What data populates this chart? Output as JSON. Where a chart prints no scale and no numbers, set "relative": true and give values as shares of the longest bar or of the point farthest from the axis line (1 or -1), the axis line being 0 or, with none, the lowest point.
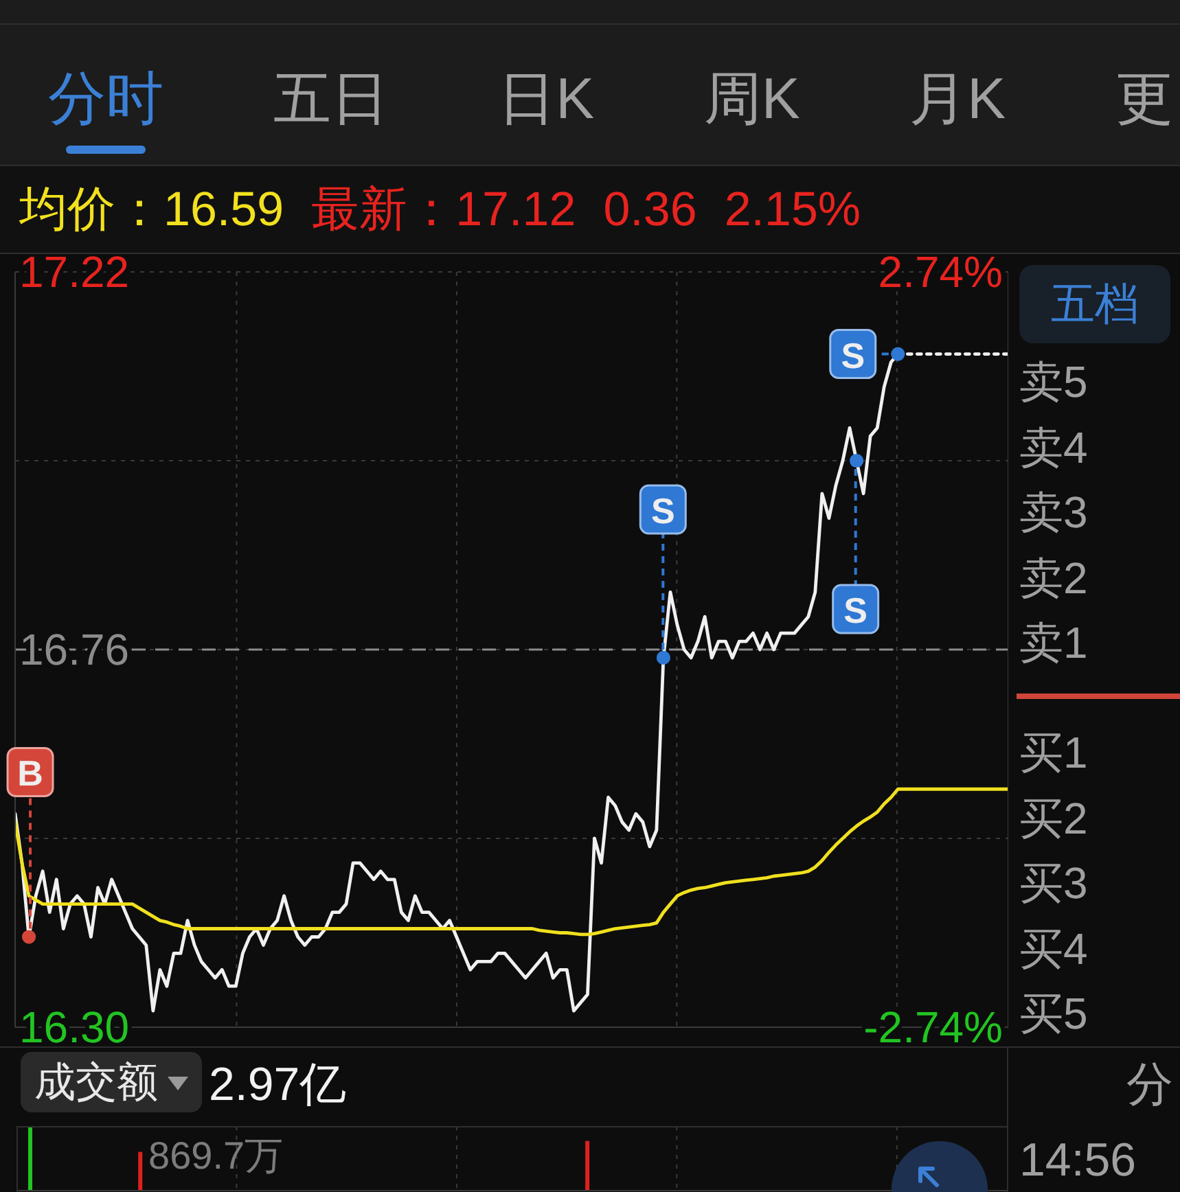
{
  "chart_data": [
    {
      "type": "other",
      "annotations": [
        "分时",
        "五日",
        "日K",
        "周K",
        "月K",
        "更"
      ]
    },
    {
      "type": "other",
      "annotations": [
        "均价：16.59",
        "最新：17.12",
        "0.36",
        "2.15%"
      ]
    },
    {
      "type": "line",
      "categories": [
        null,
        null,
        null,
        null,
        null,
        null,
        null,
        null,
        null,
        null,
        null,
        null,
        null,
        null,
        null,
        null,
        null,
        null,
        null,
        null,
        null,
        null,
        null,
        null,
        null,
        null,
        null,
        null,
        null,
        null,
        null,
        null,
        null,
        null,
        null,
        null,
        null,
        null,
        null,
        null,
        null,
        null,
        null,
        null,
        null,
        null,
        null,
        null,
        null,
        null,
        null,
        null,
        null,
        null,
        null,
        null,
        null,
        null,
        null,
        null,
        null,
        null,
        null,
        null,
        null,
        null,
        null,
        null,
        null,
        null,
        null,
        null,
        null,
        null,
        null,
        null,
        null,
        null,
        null,
        null,
        null,
        null,
        null,
        null,
        null,
        null,
        null,
        null,
        null,
        null,
        null,
        null,
        null,
        null,
        null,
        null,
        null,
        null,
        null,
        null,
        null,
        null,
        null,
        null,
        null,
        null,
        null,
        null,
        null,
        null,
        null,
        null,
        null,
        null,
        null,
        null,
        null,
        null,
        null,
        null,
        null,
        null,
        null,
        null,
        null,
        null,
        null,
        null,
        null,
        null,
        null,
        null,
        null,
        null,
        null,
        null,
        null,
        null,
        null,
        null,
        null,
        null,
        null,
        null,
        null
      ],
      "series": [
        {
          "color": "#f0f0f0",
          "values": [
            16.56,
            16.5,
            16.41,
            16.46,
            16.49,
            16.44,
            16.48,
            16.42,
            16.45,
            16.46,
            16.45,
            16.41,
            16.47,
            16.45,
            16.48,
            16.46,
            16.44,
            16.42,
            16.41,
            16.4,
            16.32,
            16.37,
            16.35,
            16.39,
            16.39,
            16.43,
            16.4,
            16.38,
            16.37,
            16.36,
            16.37,
            16.35,
            16.35,
            16.39,
            16.41,
            16.42,
            16.4,
            16.42,
            16.43,
            16.46,
            16.43,
            16.41,
            16.4,
            16.41,
            16.41,
            16.42,
            16.44,
            16.44,
            16.45,
            16.5,
            16.5,
            16.49,
            16.48,
            16.49,
            16.48,
            16.48,
            16.44,
            16.43,
            16.46,
            16.44,
            16.44,
            16.43,
            16.42,
            16.43,
            16.41,
            16.39,
            16.37,
            16.38,
            16.38,
            16.38,
            16.39,
            16.39,
            16.38,
            16.37,
            16.36,
            16.37,
            16.38,
            16.39,
            16.36,
            16.37,
            16.37,
            16.32,
            16.33,
            16.34,
            16.53,
            16.5,
            16.58,
            16.57,
            16.55,
            16.54,
            16.56,
            16.55,
            16.52,
            16.54,
            16.75,
            16.83,
            16.79,
            16.76,
            16.75,
            16.77,
            16.8,
            16.75,
            16.77,
            16.77,
            16.75,
            16.77,
            16.77,
            16.78,
            16.76,
            16.78,
            16.76,
            16.78,
            16.78,
            16.78,
            16.79,
            16.8,
            16.83,
            16.95,
            16.92,
            16.96,
            16.99,
            17.03,
            16.99,
            16.95,
            17.02,
            17.03,
            17.08,
            17.11,
            17.12,
            null,
            null,
            null,
            null,
            null,
            null,
            null,
            null,
            null,
            null,
            null,
            null,
            null,
            null,
            null,
            null
          ]
        },
        {
          "color": "#f0e01e",
          "values": [
            16.55,
            16.5,
            16.46,
            16.455,
            16.45,
            16.45,
            16.45,
            16.45,
            16.45,
            16.45,
            16.45,
            16.45,
            16.45,
            16.45,
            16.45,
            16.45,
            16.45,
            16.45,
            16.445,
            16.44,
            16.435,
            16.43,
            16.428,
            16.425,
            16.423,
            16.42,
            16.42,
            16.42,
            16.42,
            16.42,
            16.42,
            16.42,
            16.42,
            16.42,
            16.42,
            16.42,
            16.42,
            16.42,
            16.42,
            16.42,
            16.42,
            16.42,
            16.42,
            16.42,
            16.42,
            16.42,
            16.42,
            16.42,
            16.42,
            16.42,
            16.42,
            16.42,
            16.42,
            16.42,
            16.42,
            16.42,
            16.42,
            16.42,
            16.42,
            16.42,
            16.42,
            16.42,
            16.42,
            16.42,
            16.42,
            16.42,
            16.42,
            16.42,
            16.42,
            16.42,
            16.42,
            16.42,
            16.42,
            16.42,
            16.42,
            16.42,
            16.418,
            16.417,
            16.416,
            16.415,
            16.415,
            16.414,
            16.413,
            16.413,
            16.414,
            16.416,
            16.418,
            16.42,
            16.421,
            16.422,
            16.423,
            16.424,
            16.425,
            16.427,
            16.44,
            16.45,
            16.46,
            16.464,
            16.467,
            16.469,
            16.47,
            16.472,
            16.474,
            16.476,
            16.477,
            16.478,
            16.479,
            16.48,
            16.481,
            16.482,
            16.484,
            16.485,
            16.486,
            16.487,
            16.488,
            16.49,
            16.495,
            16.503,
            16.513,
            16.522,
            16.53,
            16.538,
            16.545,
            16.551,
            16.556,
            16.562,
            16.572,
            16.58,
            16.59,
            16.59,
            16.59,
            16.59,
            16.59,
            16.59,
            16.59,
            16.59,
            16.59,
            16.59,
            16.59,
            16.59,
            16.59,
            16.59,
            16.59,
            16.59,
            16.59
          ]
        },
        {
          "color": "#f0f0f0",
          "line_style": "dotted",
          "values": [
            null,
            null,
            null,
            null,
            null,
            null,
            null,
            null,
            null,
            null,
            null,
            null,
            null,
            null,
            null,
            null,
            null,
            null,
            null,
            null,
            null,
            null,
            null,
            null,
            null,
            null,
            null,
            null,
            null,
            null,
            null,
            null,
            null,
            null,
            null,
            null,
            null,
            null,
            null,
            null,
            null,
            null,
            null,
            null,
            null,
            null,
            null,
            null,
            null,
            null,
            null,
            null,
            null,
            null,
            null,
            null,
            null,
            null,
            null,
            null,
            null,
            null,
            null,
            null,
            null,
            null,
            null,
            null,
            null,
            null,
            null,
            null,
            null,
            null,
            null,
            null,
            null,
            null,
            null,
            null,
            null,
            null,
            null,
            null,
            null,
            null,
            null,
            null,
            null,
            null,
            null,
            null,
            null,
            null,
            null,
            null,
            null,
            null,
            null,
            null,
            null,
            null,
            null,
            null,
            null,
            null,
            null,
            null,
            null,
            null,
            null,
            null,
            null,
            null,
            null,
            null,
            null,
            null,
            null,
            null,
            null,
            null,
            null,
            null,
            null,
            null,
            null,
            null,
            17.12,
            17.12,
            17.12,
            17.12,
            17.12,
            17.12,
            17.12,
            17.12,
            17.12,
            17.12,
            17.12,
            17.12,
            17.12,
            17.12,
            17.12,
            17.12,
            17.12
          ]
        },
        {
          "type": "scatter",
          "color": "#d4463a",
          "marker": "circle",
          "values": [
            null,
            null,
            16.41,
            null,
            null,
            null,
            null,
            null,
            null,
            null,
            null,
            null,
            null,
            null,
            null,
            null,
            null,
            null,
            null,
            null,
            null,
            null,
            null,
            null,
            null,
            null,
            null,
            null,
            null,
            null,
            null,
            null,
            null,
            null,
            null,
            null,
            null,
            null,
            null,
            null,
            null,
            null,
            null,
            null,
            null,
            null,
            null,
            null,
            null,
            null,
            null,
            null,
            null,
            null,
            null,
            null,
            null,
            null,
            null,
            null,
            null,
            null,
            null,
            null,
            null,
            null,
            null,
            null,
            null,
            null,
            null,
            null,
            null,
            null,
            null,
            null,
            null,
            null,
            null,
            null,
            null,
            null,
            null,
            null,
            null,
            null,
            null,
            null,
            null,
            null,
            null,
            null,
            null,
            null,
            null,
            null,
            null,
            null,
            null,
            null,
            null,
            null,
            null,
            null,
            null,
            null,
            null,
            null,
            null,
            null,
            null,
            null,
            null,
            null,
            null,
            null,
            null,
            null,
            null,
            null,
            null,
            null,
            null,
            null,
            null,
            null,
            null,
            null,
            null,
            null,
            null,
            null,
            null,
            null,
            null,
            null,
            null,
            null,
            null,
            null,
            null,
            null,
            null,
            null,
            null
          ],
          "value_labels": [
            null,
            null,
            "B",
            null,
            null,
            null,
            null,
            null,
            null,
            null,
            null,
            null,
            null,
            null,
            null,
            null,
            null,
            null,
            null,
            null,
            null,
            null,
            null,
            null,
            null,
            null,
            null,
            null,
            null,
            null,
            null,
            null,
            null,
            null,
            null,
            null,
            null,
            null,
            null,
            null,
            null,
            null,
            null,
            null,
            null,
            null,
            null,
            null,
            null,
            null,
            null,
            null,
            null,
            null,
            null,
            null,
            null,
            null,
            null,
            null,
            null,
            null,
            null,
            null,
            null,
            null,
            null,
            null,
            null,
            null,
            null,
            null,
            null,
            null,
            null,
            null,
            null,
            null,
            null,
            null,
            null,
            null,
            null,
            null,
            null,
            null,
            null,
            null,
            null,
            null,
            null,
            null,
            null,
            null,
            null,
            null,
            null,
            null,
            null,
            null,
            null,
            null,
            null,
            null,
            null,
            null,
            null,
            null,
            null,
            null,
            null,
            null,
            null,
            null,
            null,
            null,
            null,
            null,
            null,
            null,
            null,
            null,
            null,
            null,
            null,
            null,
            null,
            null,
            null,
            null,
            null,
            null,
            null,
            null,
            null,
            null,
            null,
            null,
            null,
            null,
            null,
            null,
            null,
            null,
            null
          ]
        },
        {
          "type": "scatter",
          "color": "#2f78d4",
          "marker": "circle",
          "values": [
            null,
            null,
            null,
            null,
            null,
            null,
            null,
            null,
            null,
            null,
            null,
            null,
            null,
            null,
            null,
            null,
            null,
            null,
            null,
            null,
            null,
            null,
            null,
            null,
            null,
            null,
            null,
            null,
            null,
            null,
            null,
            null,
            null,
            null,
            null,
            null,
            null,
            null,
            null,
            null,
            null,
            null,
            null,
            null,
            null,
            null,
            null,
            null,
            null,
            null,
            null,
            null,
            null,
            null,
            null,
            null,
            null,
            null,
            null,
            null,
            null,
            null,
            null,
            null,
            null,
            null,
            null,
            null,
            null,
            null,
            null,
            null,
            null,
            null,
            null,
            null,
            null,
            null,
            null,
            null,
            null,
            null,
            null,
            null,
            null,
            null,
            null,
            null,
            null,
            null,
            null,
            null,
            null,
            null,
            16.75,
            null,
            null,
            null,
            null,
            null,
            null,
            null,
            null,
            null,
            null,
            null,
            null,
            null,
            null,
            null,
            null,
            null,
            null,
            null,
            null,
            null,
            null,
            null,
            null,
            null,
            null,
            null,
            16.99,
            null,
            null,
            null,
            null,
            null,
            17.12,
            null,
            null,
            null,
            null,
            null,
            null,
            null,
            null,
            null,
            null,
            null,
            null,
            null,
            null,
            null,
            null
          ],
          "value_labels": [
            null,
            null,
            null,
            null,
            null,
            null,
            null,
            null,
            null,
            null,
            null,
            null,
            null,
            null,
            null,
            null,
            null,
            null,
            null,
            null,
            null,
            null,
            null,
            null,
            null,
            null,
            null,
            null,
            null,
            null,
            null,
            null,
            null,
            null,
            null,
            null,
            null,
            null,
            null,
            null,
            null,
            null,
            null,
            null,
            null,
            null,
            null,
            null,
            null,
            null,
            null,
            null,
            null,
            null,
            null,
            null,
            null,
            null,
            null,
            null,
            null,
            null,
            null,
            null,
            null,
            null,
            null,
            null,
            null,
            null,
            null,
            null,
            null,
            null,
            null,
            null,
            null,
            null,
            null,
            null,
            null,
            null,
            null,
            null,
            null,
            null,
            null,
            null,
            null,
            null,
            null,
            null,
            null,
            null,
            "S",
            null,
            null,
            null,
            null,
            null,
            null,
            null,
            null,
            null,
            null,
            null,
            null,
            null,
            null,
            null,
            null,
            null,
            null,
            null,
            null,
            null,
            null,
            null,
            null,
            null,
            null,
            null,
            "S",
            null,
            null,
            null,
            null,
            null,
            "S",
            null,
            null,
            null,
            null,
            null,
            null,
            null,
            null,
            null,
            null,
            null,
            null,
            null,
            null,
            null,
            null
          ]
        }
      ],
      "ylim": [
        16.3,
        17.22
      ],
      "yticks": [
        {
          "value": 16.3,
          "label": "16.30"
        },
        {
          "value": 16.53,
          "label": null
        },
        16.76,
        {
          "value": 16.99,
          "label": null
        },
        17.22
      ],
      "y2lim": [
        -2.74,
        2.74
      ],
      "y2ticks": [
        {
          "value": -2.74,
          "label": "-2.74%"
        },
        {
          "value": 2.74,
          "label": "2.74%"
        }
      ],
      "ref_lines": [
        {
          "axis": "y",
          "value": 16.76,
          "color": "#8c8c8c",
          "line_style": "dashed"
        }
      ],
      "grid": true
    },
    {
      "type": "other",
      "annotations": [
        "五档",
        "卖5",
        "卖4",
        "卖3",
        "卖2",
        "卖1",
        "买1",
        "买2",
        "买3",
        "买4",
        "买5"
      ]
    },
    {
      "type": "bar",
      "title": "成交额",
      "subtitle": "2.97亿",
      "annotations": [
        "869.7万"
      ],
      "relative": true,
      "categories": [
        null,
        null,
        null,
        null,
        null,
        null,
        null,
        null,
        null,
        null,
        null,
        null,
        null,
        null,
        null,
        null,
        null,
        null,
        null,
        null,
        null,
        null,
        null,
        null,
        null,
        null,
        null,
        null,
        null,
        null,
        null,
        null,
        null,
        null,
        null,
        null,
        null,
        null,
        null,
        null,
        null,
        null,
        null,
        null,
        null,
        null,
        null,
        null,
        null,
        null,
        null,
        null,
        null,
        null,
        null,
        null,
        null,
        null,
        null,
        null,
        null,
        null,
        null,
        null,
        null,
        null,
        null,
        null,
        null,
        null,
        null,
        null,
        null,
        null,
        null,
        null,
        null,
        null,
        null,
        null,
        null,
        null,
        null,
        null,
        null,
        null,
        null,
        null,
        null,
        null,
        null,
        null,
        null,
        null,
        null,
        null,
        null,
        null,
        null,
        null,
        null,
        null,
        null,
        null,
        null,
        null,
        null,
        null,
        null,
        null,
        null,
        null,
        null,
        null,
        null,
        null,
        null,
        null,
        null,
        null,
        null,
        null,
        null,
        null,
        null,
        null,
        null,
        null,
        null,
        null,
        null,
        null,
        null,
        null,
        null,
        null,
        null,
        null,
        null,
        null,
        null,
        null,
        null,
        null,
        null
      ],
      "values": [
        null,
        null,
        1,
        null,
        null,
        null,
        null,
        null,
        null,
        null,
        null,
        null,
        null,
        null,
        null,
        null,
        null,
        null,
        0.6,
        null,
        null,
        null,
        null,
        null,
        null,
        null,
        null,
        null,
        null,
        null,
        null,
        null,
        null,
        null,
        null,
        null,
        null,
        null,
        null,
        null,
        null,
        null,
        null,
        null,
        null,
        null,
        null,
        null,
        null,
        null,
        null,
        null,
        null,
        null,
        null,
        null,
        null,
        null,
        null,
        null,
        null,
        null,
        null,
        null,
        null,
        null,
        null,
        null,
        null,
        null,
        null,
        null,
        null,
        null,
        null,
        null,
        null,
        null,
        null,
        null,
        null,
        null,
        null,
        0.77,
        null,
        null,
        null,
        null,
        null,
        null,
        null,
        null,
        null,
        null,
        null,
        null,
        null,
        null,
        null,
        null,
        null,
        null,
        null,
        null,
        null,
        null,
        null,
        null,
        null,
        null,
        null,
        null,
        null,
        null,
        null,
        null,
        null,
        null,
        null,
        null,
        null,
        null,
        null,
        null,
        null,
        null,
        null,
        null,
        null,
        null,
        null,
        null,
        null,
        null,
        null,
        null,
        null,
        null,
        null,
        null,
        null,
        null,
        null,
        null,
        null
      ],
      "colors": [
        null,
        null,
        "#22c422",
        null,
        null,
        null,
        null,
        null,
        null,
        null,
        null,
        null,
        null,
        null,
        null,
        null,
        null,
        null,
        "#e0211d",
        null,
        null,
        null,
        null,
        null,
        null,
        null,
        null,
        null,
        null,
        null,
        null,
        null,
        null,
        null,
        null,
        null,
        null,
        null,
        null,
        null,
        null,
        null,
        null,
        null,
        null,
        null,
        null,
        null,
        null,
        null,
        null,
        null,
        null,
        null,
        null,
        null,
        null,
        null,
        null,
        null,
        null,
        null,
        null,
        null,
        null,
        null,
        null,
        null,
        null,
        null,
        null,
        null,
        null,
        null,
        null,
        null,
        null,
        null,
        null,
        null,
        null,
        null,
        null,
        "#e0211d",
        null,
        null,
        null,
        null,
        null,
        null,
        null,
        null,
        null,
        null,
        null,
        null,
        null,
        null,
        null,
        null,
        null,
        null,
        null,
        null,
        null,
        null,
        null,
        null,
        null,
        null,
        null,
        null,
        null,
        null,
        null,
        null,
        null,
        null,
        null,
        null,
        null,
        null,
        null,
        null,
        null,
        null,
        null,
        null,
        null,
        null,
        null,
        null,
        null,
        null,
        null,
        null,
        null,
        null,
        null,
        null,
        null,
        null,
        null,
        null,
        null
      ],
      "grid": "x"
    },
    {
      "type": "other",
      "annotations": [
        "分",
        "14:56"
      ]
    }
  ]
}
